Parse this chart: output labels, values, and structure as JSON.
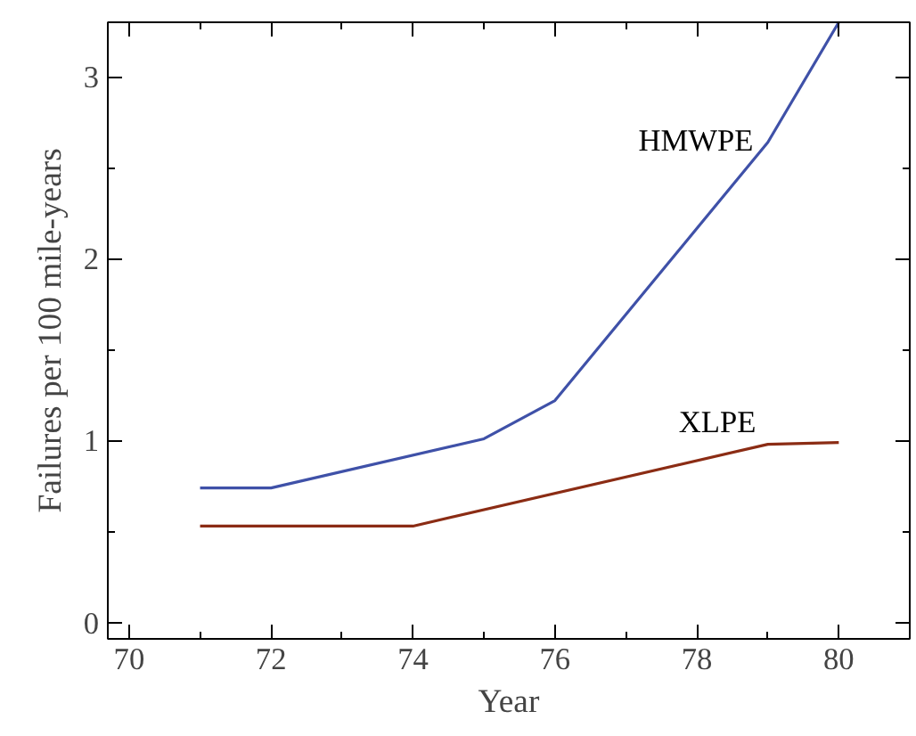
{
  "chart_data": {
    "type": "line",
    "xlabel": "Year",
    "ylabel": "Failures per 100 mile-years",
    "xlim": [
      69.7,
      81
    ],
    "ylim": [
      -0.09,
      3.3
    ],
    "xticks": [
      70,
      72,
      74,
      76,
      78,
      80
    ],
    "yticks": [
      0,
      1,
      2,
      3
    ],
    "grid": false,
    "series": [
      {
        "name": "HMWPE",
        "color": "#3f51a8",
        "x": [
          71,
          72,
          75,
          76,
          79,
          80
        ],
        "values": [
          0.74,
          0.74,
          1.01,
          1.22,
          2.64,
          3.3
        ]
      },
      {
        "name": "XLPE",
        "color": "#8b2c14",
        "x": [
          71,
          74,
          79,
          80
        ],
        "values": [
          0.53,
          0.53,
          0.98,
          0.99
        ]
      }
    ]
  }
}
